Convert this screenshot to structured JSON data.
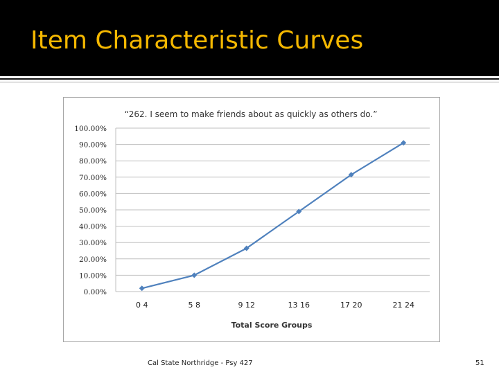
{
  "slide": {
    "title": "Item Characteristic Curves",
    "footer": "Cal State Northridge - Psy 427",
    "page_number": "51",
    "title_color": "#f5b800"
  },
  "chart_data": {
    "type": "line",
    "title": "“262. I seem to make friends about as quickly as others do.”",
    "xlabel": "Total Score Groups",
    "ylabel": "",
    "categories": [
      "0 4",
      "5 8",
      "9 12",
      "13 16",
      "17 20",
      "21 24"
    ],
    "series": [
      {
        "values": [
          2.0,
          10.0,
          26.5,
          49.0,
          71.5,
          91.0
        ],
        "color": "#4f81bd"
      }
    ],
    "ylim": [
      0,
      100
    ],
    "yticks": [
      "0.00%",
      "10.00%",
      "20.00%",
      "30.00%",
      "40.00%",
      "50.00%",
      "60.00%",
      "70.00%",
      "80.00%",
      "90.00%",
      "100.00%"
    ],
    "grid": true,
    "legend": "none"
  }
}
